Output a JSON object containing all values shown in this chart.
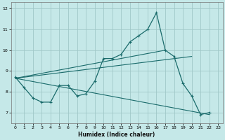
{
  "xlabel": "Humidex (Indice chaleur)",
  "bg_color": "#c5e8e8",
  "grid_color": "#a0c8c8",
  "line_color": "#1a6b6b",
  "xlim": [
    -0.5,
    23.5
  ],
  "ylim": [
    6.5,
    12.3
  ],
  "xticks": [
    0,
    1,
    2,
    3,
    4,
    5,
    6,
    7,
    8,
    9,
    10,
    11,
    12,
    13,
    14,
    15,
    16,
    17,
    18,
    19,
    20,
    21,
    22,
    23
  ],
  "yticks": [
    7,
    8,
    9,
    10,
    11,
    12
  ],
  "main_line": {
    "x": [
      0,
      1,
      2,
      3,
      4,
      5,
      6,
      7,
      8,
      9,
      10,
      11,
      12,
      13,
      14,
      15,
      16,
      17,
      18,
      19,
      20,
      21,
      22
    ],
    "y": [
      8.7,
      8.2,
      7.7,
      7.5,
      7.5,
      8.3,
      8.3,
      7.8,
      7.9,
      8.5,
      9.6,
      9.6,
      9.8,
      10.4,
      10.7,
      11.0,
      11.8,
      10.0,
      9.7,
      8.4,
      7.8,
      6.9,
      7.0
    ]
  },
  "trend_lines": [
    {
      "x": [
        0,
        20
      ],
      "y": [
        8.65,
        9.7
      ]
    },
    {
      "x": [
        0,
        22
      ],
      "y": [
        8.65,
        6.9
      ]
    },
    {
      "x": [
        0,
        17
      ],
      "y": [
        8.65,
        10.0
      ]
    }
  ]
}
